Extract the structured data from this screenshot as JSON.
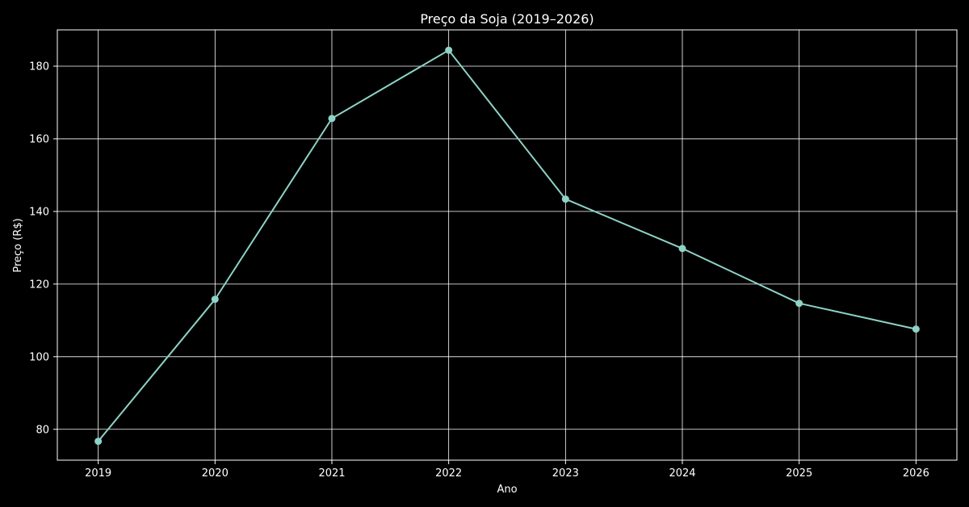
{
  "chart_data": {
    "type": "line",
    "title": "Preço da Soja (2019–2026)",
    "xlabel": "Ano",
    "ylabel": "Preço (R$)",
    "x": [
      "2019",
      "2020",
      "2021",
      "2022",
      "2023",
      "2024",
      "2025",
      "2026"
    ],
    "series": [
      {
        "values": [
          76.7,
          115.8,
          165.6,
          184.4,
          143.4,
          129.8,
          114.7,
          107.6
        ]
      }
    ],
    "xlim": [
      2018.65,
      2026.35
    ],
    "ylim": [
      71.5,
      190.0
    ],
    "yticks": [
      80,
      100,
      120,
      140,
      160,
      180
    ],
    "grid": true,
    "colors": {
      "background": "#000000",
      "line": "#8dd3c7",
      "marker": "#8dd3c7",
      "grid": "#ffffff",
      "axes": "#ffffff",
      "text": "#ffffff"
    }
  }
}
